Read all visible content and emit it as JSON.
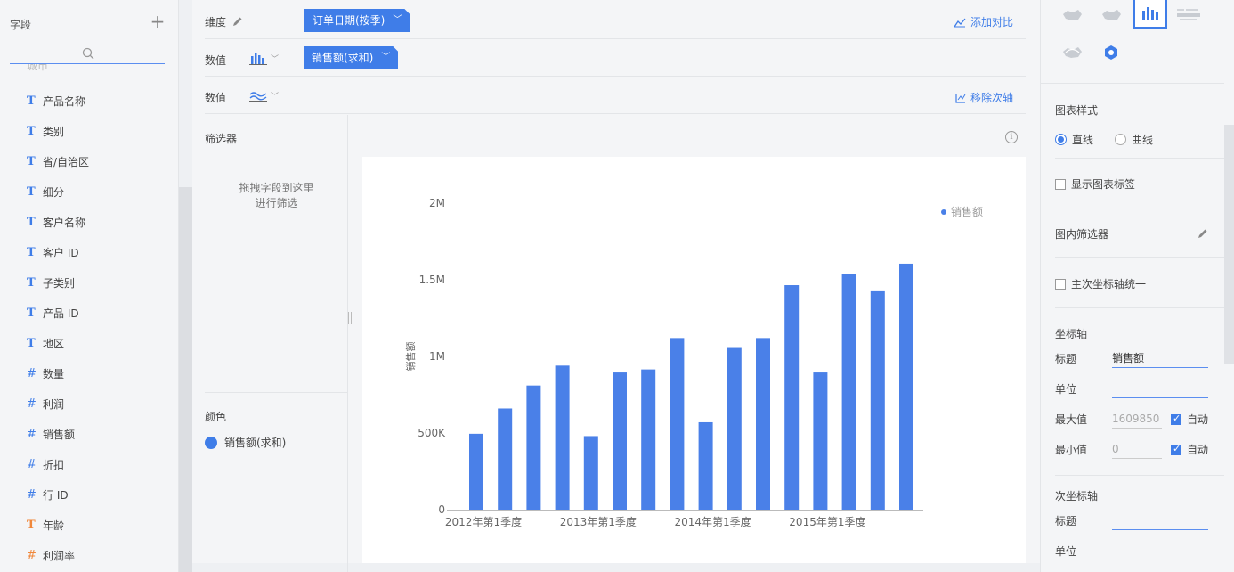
{
  "fields_panel": {
    "title": "字段",
    "add_symbol": "+",
    "partial_item": "城市",
    "items": [
      {
        "type": "T",
        "label": "产品名称"
      },
      {
        "type": "T",
        "label": "类别"
      },
      {
        "type": "T",
        "label": "省/自治区"
      },
      {
        "type": "T",
        "label": "细分"
      },
      {
        "type": "T",
        "label": "客户名称"
      },
      {
        "type": "T",
        "label": "客户 ID"
      },
      {
        "type": "T",
        "label": "子类别"
      },
      {
        "type": "T",
        "label": "产品 ID"
      },
      {
        "type": "T",
        "label": "地区"
      },
      {
        "type": "#",
        "label": "数量"
      },
      {
        "type": "#",
        "label": "利润"
      },
      {
        "type": "#",
        "label": "销售额"
      },
      {
        "type": "#",
        "label": "折扣"
      },
      {
        "type": "#",
        "label": "行 ID"
      },
      {
        "type": "T",
        "label": "年龄"
      },
      {
        "type": "#",
        "label": "利润率"
      }
    ]
  },
  "shelves": {
    "dimension_label": "维度",
    "dimension_pill": "订单日期(按季)",
    "add_compare": "添加对比",
    "value_label_1": "数值",
    "value_pill": "销售额(求和)",
    "value_label_2": "数值",
    "remove_secondary_axis": "移除次轴"
  },
  "filter_panel": {
    "title": "筛选器",
    "drop_hint_line1": "拖拽字段到这里",
    "drop_hint_line2": "进行筛选",
    "color_title": "颜色",
    "color_item": "销售额(求和)"
  },
  "info_symbol": "i",
  "chart_data": {
    "type": "bar",
    "title": "",
    "ylabel": "销售额",
    "legend": [
      "销售额"
    ],
    "legend_position": "top-right",
    "color": "#4a80e8",
    "ylim": [
      0,
      2000000
    ],
    "yticks": [
      "0",
      "500K",
      "1M",
      "1.5M",
      "2M"
    ],
    "yticks_values": [
      0,
      500000,
      1000000,
      1500000,
      2000000
    ],
    "x_tick_labels": [
      "2012年第1季度",
      "2013年第1季度",
      "2014年第1季度",
      "2015年第1季度"
    ],
    "x_tick_indices": [
      0,
      4,
      8,
      12
    ],
    "categories": [
      "2012Q1",
      "2012Q2",
      "2012Q3",
      "2012Q4",
      "2013Q1",
      "2013Q2",
      "2013Q3",
      "2013Q4",
      "2014Q1",
      "2014Q2",
      "2014Q3",
      "2014Q4",
      "2015Q1",
      "2015Q2",
      "2015Q3",
      "2015Q4"
    ],
    "values": [
      495000,
      660000,
      810000,
      940000,
      480000,
      895000,
      915000,
      1120000,
      570000,
      1055000,
      1120000,
      1465000,
      895000,
      1540000,
      1425000,
      1605000
    ]
  },
  "right_panel": {
    "chart_style_title": "图表样式",
    "line_straight": "直线",
    "line_curve": "曲线",
    "show_labels": "显示图表标签",
    "inner_filter": "图内筛选器",
    "unify_axes": "主次坐标轴统一",
    "axis_title": "坐标轴",
    "title_label": "标题",
    "title_value": "销售额",
    "unit_label": "单位",
    "unit_value": "",
    "max_label": "最大值",
    "max_value": "1609850",
    "min_label": "最小值",
    "min_value": "0",
    "auto_label": "自动",
    "secondary_axis_title": "次坐标轴",
    "sec_title_label": "标题",
    "sec_unit_label": "单位"
  }
}
